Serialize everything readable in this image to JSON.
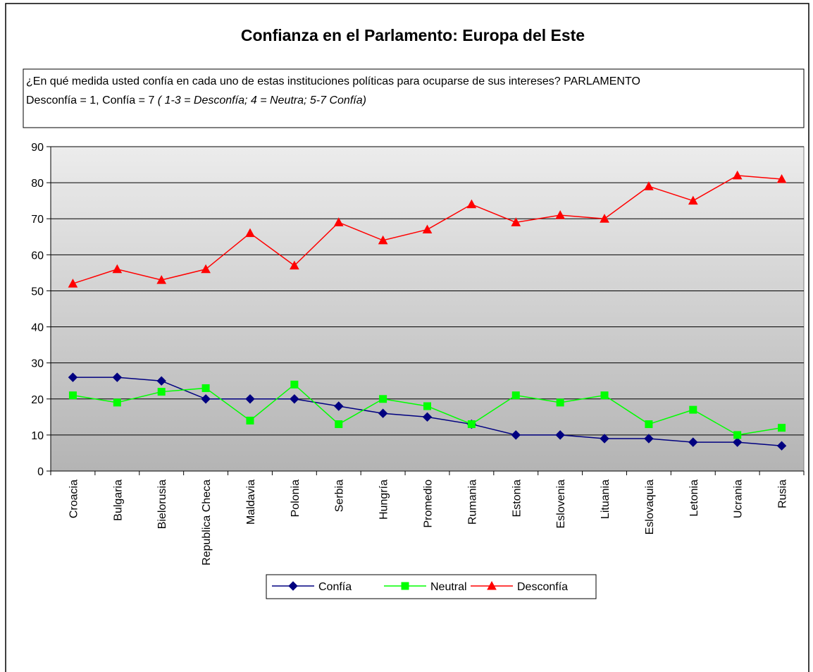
{
  "chart_data": {
    "type": "line",
    "title": "Confianza en el Parlamento: Europa del Este",
    "subtitle": [
      "¿En qué medida usted confía en cada uno de estas instituciones políticas para ocuparse de sus intereses? PARLAMENTO",
      "Desconfía = 1, Confía = 7",
      "( 1-3 = Desconfía; 4 = Neutra; 5-7 Confía)"
    ],
    "categories": [
      "Croacia",
      "Bulgaria",
      "Bielorusia",
      "Republica Checa",
      "Maldavia",
      "Polonia",
      "Serbia",
      "Hungría",
      "Promedio",
      "Rumania",
      "Estonia",
      "Eslovenia",
      "Lituania",
      "Eslovaquia",
      "Letonia",
      "Ucrania",
      "Rusia"
    ],
    "series": [
      {
        "name": "Confía",
        "color": "#000080",
        "marker": "diamond",
        "values": [
          26,
          26,
          25,
          20,
          20,
          20,
          18,
          16,
          15,
          13,
          10,
          10,
          9,
          9,
          8,
          8,
          7
        ]
      },
      {
        "name": "Neutral",
        "color": "#00ff00",
        "marker": "square",
        "values": [
          21,
          19,
          22,
          23,
          14,
          24,
          13,
          20,
          18,
          13,
          21,
          19,
          21,
          13,
          17,
          10,
          12
        ]
      },
      {
        "name": "Desconfía",
        "color": "#ff0000",
        "marker": "triangle",
        "values": [
          52,
          56,
          53,
          56,
          66,
          57,
          69,
          64,
          67,
          74,
          69,
          71,
          70,
          79,
          75,
          82,
          81
        ]
      }
    ],
    "ylim": [
      0,
      90
    ],
    "yticks": [
      0,
      10,
      20,
      30,
      40,
      50,
      60,
      70,
      80,
      90
    ],
    "grid": true,
    "legend": "bottom"
  }
}
